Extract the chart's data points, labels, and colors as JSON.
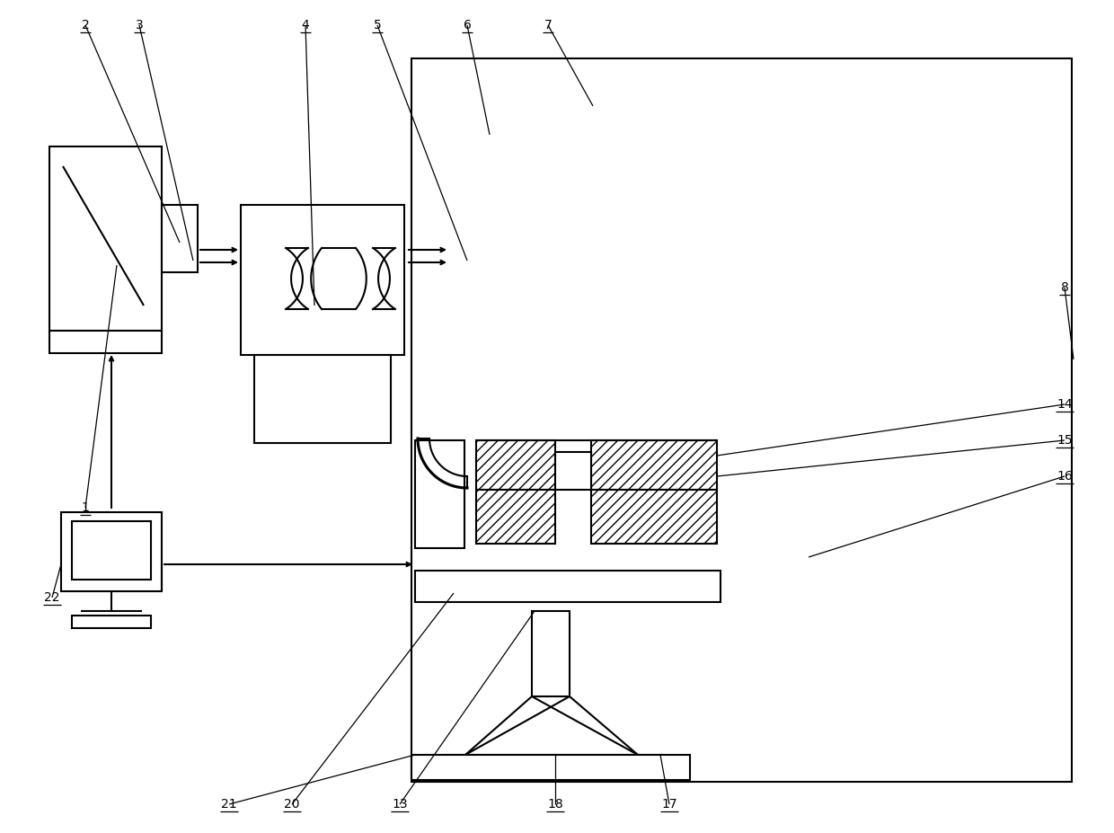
{
  "bg_color": "#ffffff",
  "line_color": "#000000",
  "lw": 1.5,
  "lw_thin": 0.9,
  "fig_width": 12.4,
  "fig_height": 9.27,
  "dpi": 100
}
